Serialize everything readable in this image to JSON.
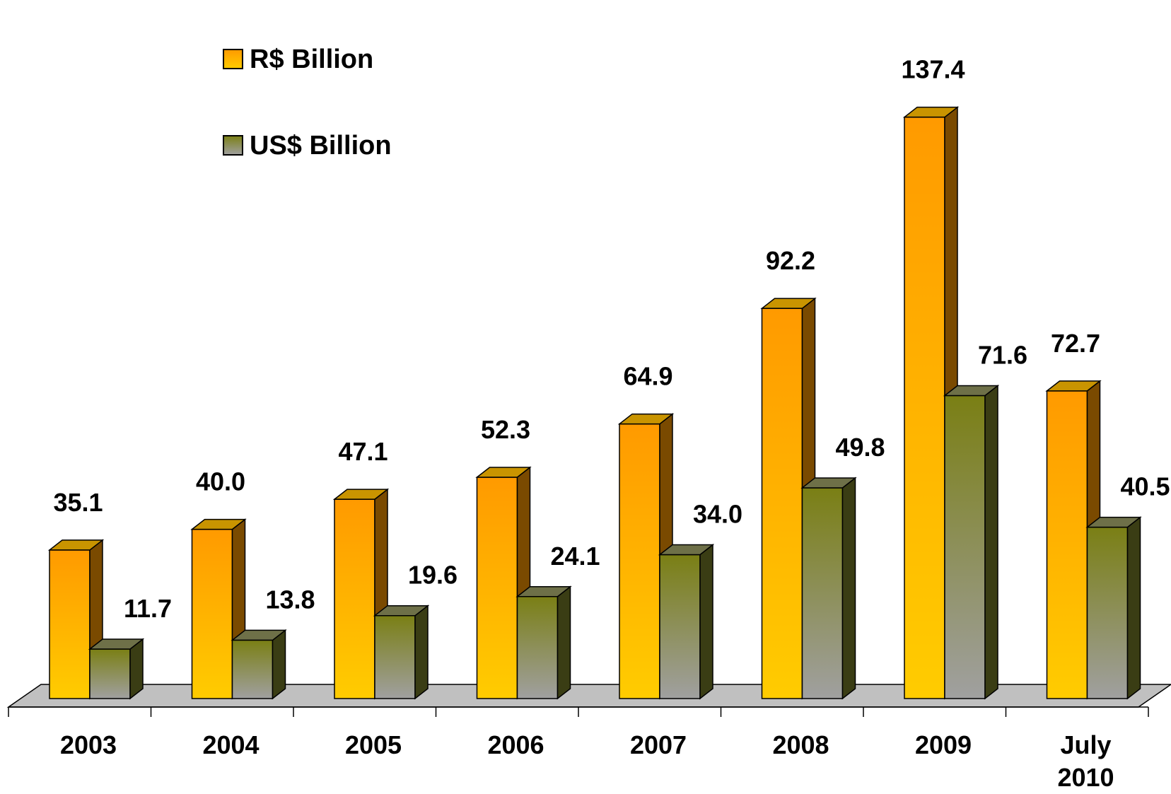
{
  "chart_data": {
    "type": "bar",
    "categories": [
      "2003",
      "2004",
      "2005",
      "2006",
      "2007",
      "2008",
      "2009",
      "July 2010"
    ],
    "category_lines": [
      [
        "2003"
      ],
      [
        "2004"
      ],
      [
        "2005"
      ],
      [
        "2006"
      ],
      [
        "2007"
      ],
      [
        "2008"
      ],
      [
        "2009"
      ],
      [
        "July",
        "2010"
      ]
    ],
    "series": [
      {
        "name": "R$ Billion",
        "values": [
          35.1,
          40.0,
          47.1,
          52.3,
          64.9,
          92.2,
          137.4,
          72.7
        ],
        "labels": [
          "35.1",
          "40.0",
          "47.1",
          "52.3",
          "64.9",
          "92.2",
          "137.4",
          "72.7"
        ],
        "color_top": "#ff9a00",
        "color_bottom": "#ffcc00",
        "side": "#7a4a00",
        "cap": "#c99400"
      },
      {
        "name": "US$ Billion",
        "values": [
          11.7,
          13.8,
          19.6,
          24.1,
          34.0,
          49.8,
          71.6,
          40.5
        ],
        "labels": [
          "11.7",
          "13.8",
          "19.6",
          "24.1",
          "34.0",
          "49.8",
          "71.6",
          "40.5"
        ],
        "color_top": "#7a7f14",
        "color_bottom": "#a0a0a0",
        "side": "#3a3d14",
        "cap": "#6e7048"
      }
    ],
    "legend": "top-left",
    "grid": false,
    "three_d": true,
    "floor_color": "#c0c0c0"
  }
}
